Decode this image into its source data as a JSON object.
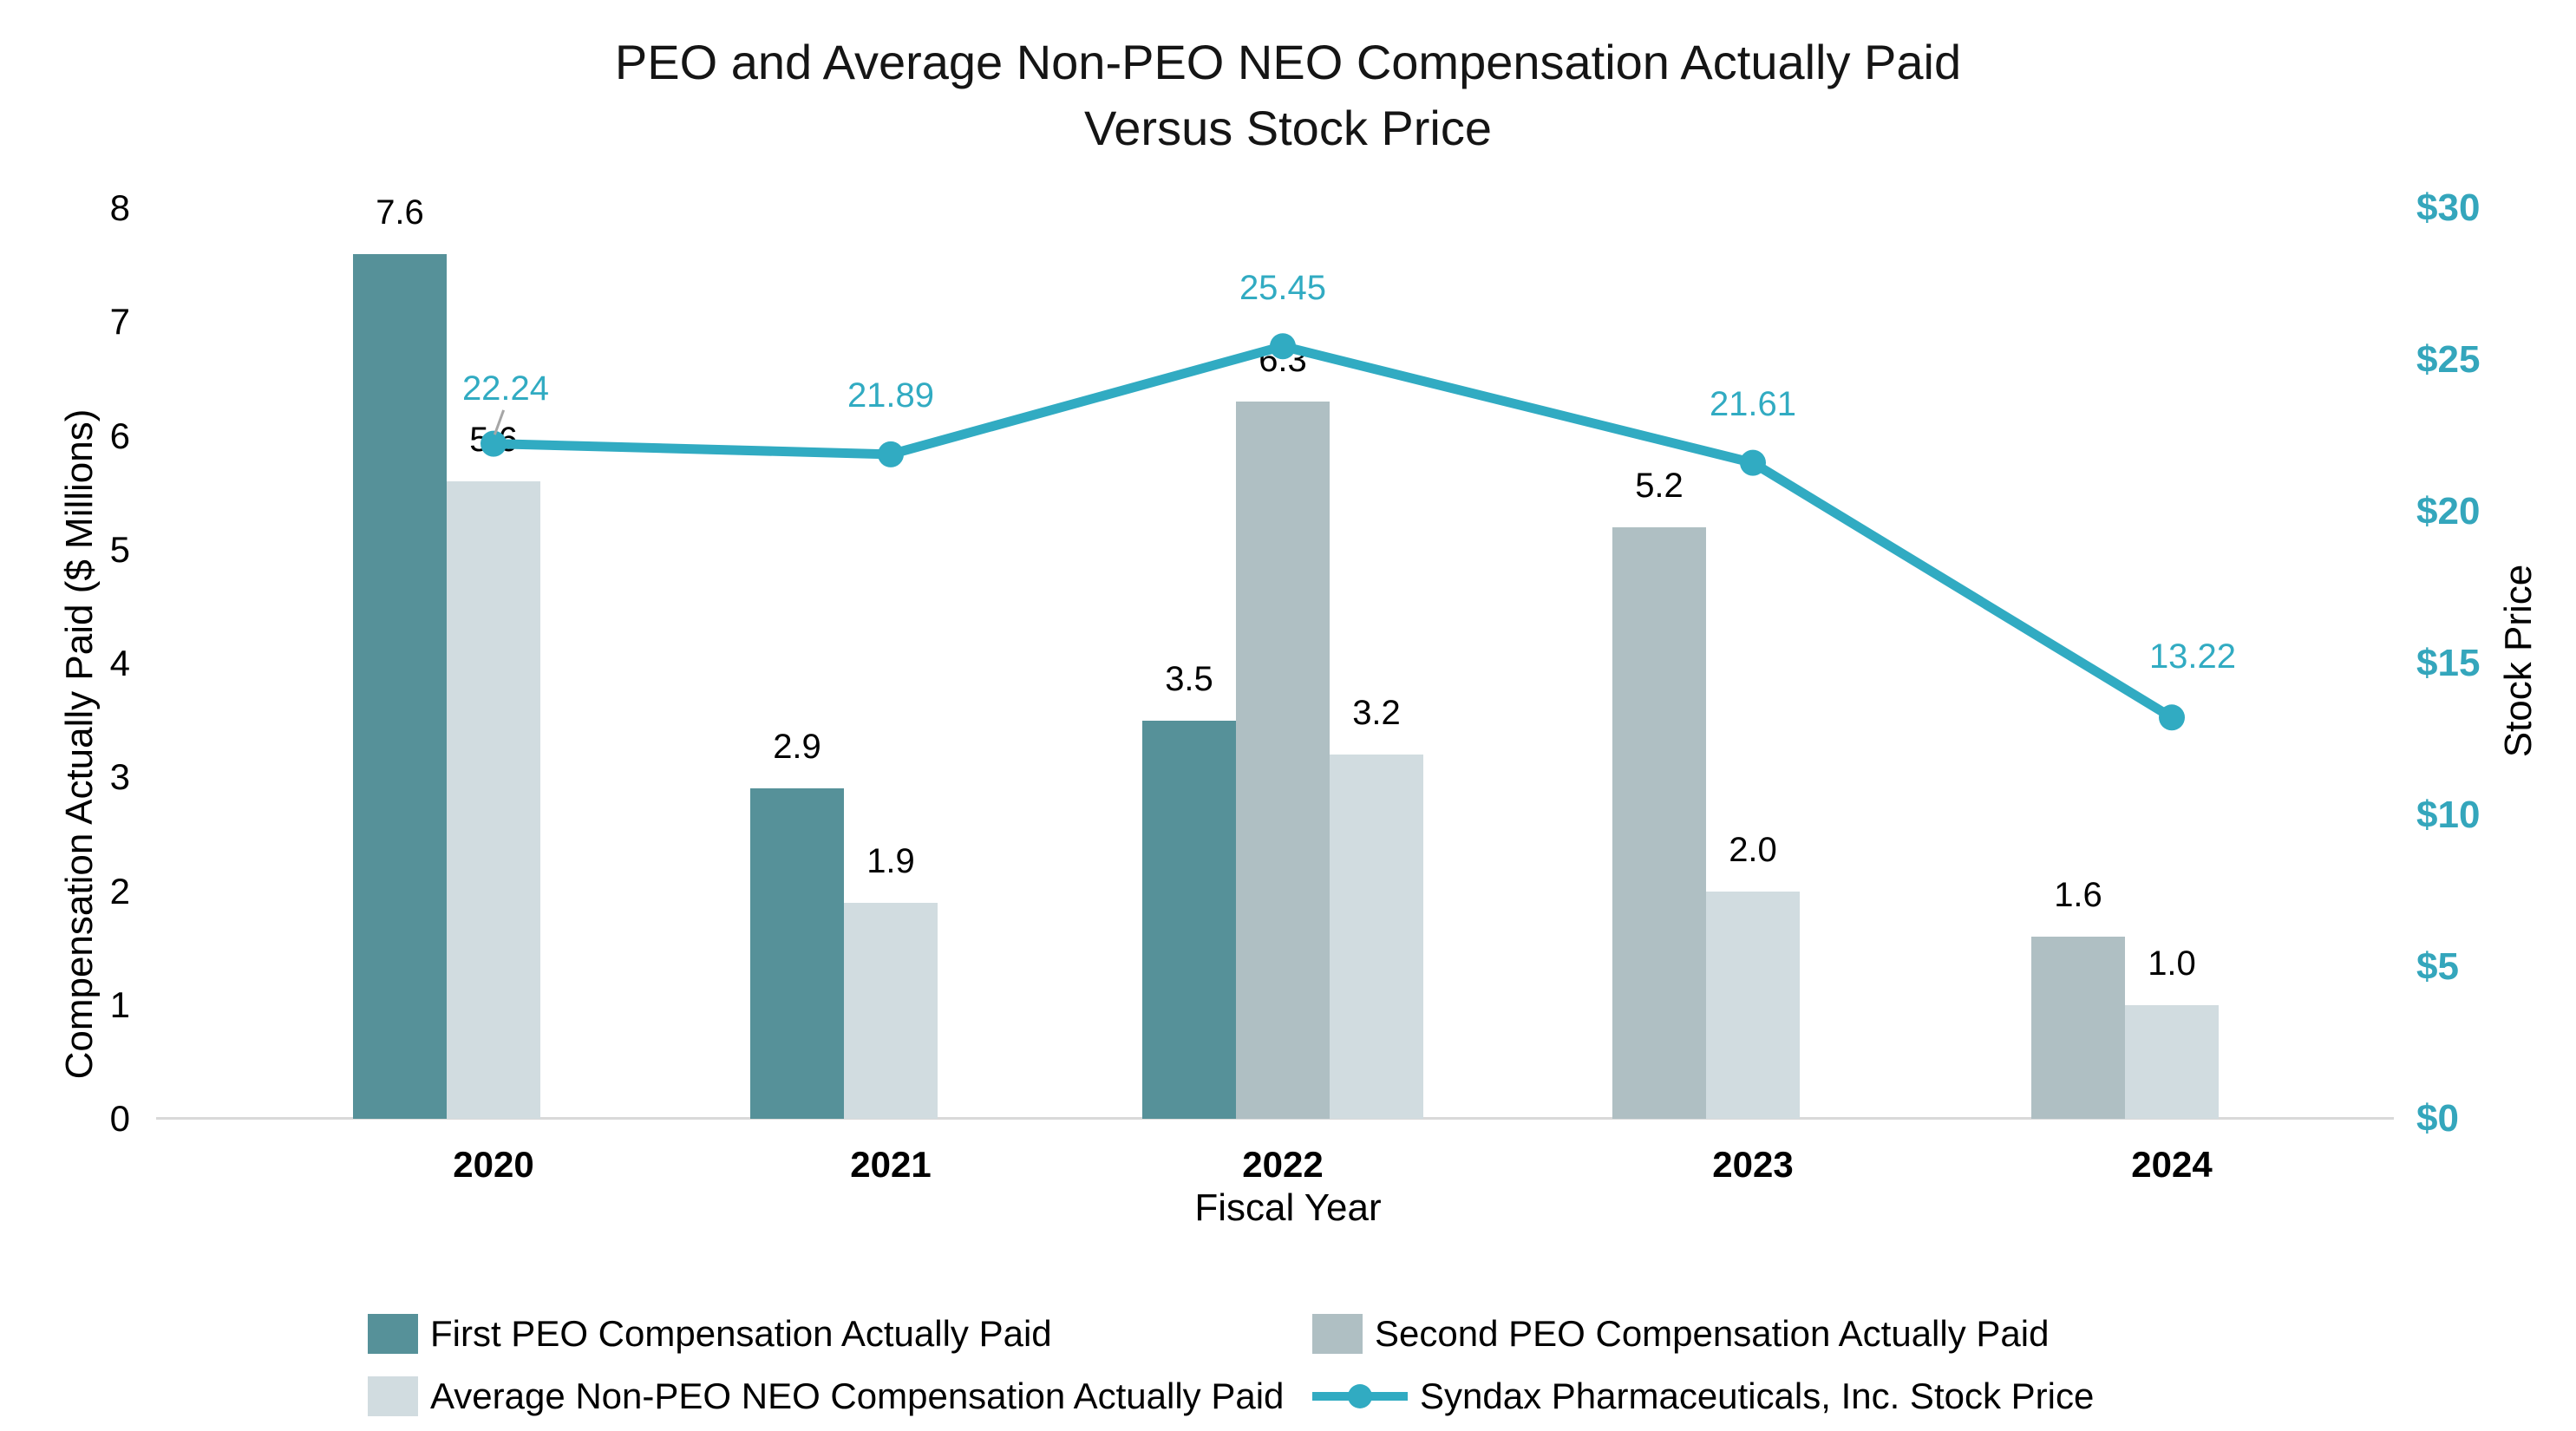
{
  "title": {
    "line1": "PEO and Average Non-PEO NEO Compensation Actually Paid",
    "line2": "Versus Stock Price"
  },
  "colors": {
    "first_peo": "#569199",
    "second_peo": "#afbfc3",
    "avg_non_peo": "#d1dce0",
    "stock_line": "#31abc2",
    "right_axis_text": "#34a6bc",
    "axis_line": "#d9d9d9",
    "leader_line": "#a6a6a6"
  },
  "chart_data": {
    "type": "bar+line",
    "categories": [
      "2020",
      "2021",
      "2022",
      "2023",
      "2024"
    ],
    "series": [
      {
        "key": "first-peo",
        "name": "First PEO Compensation Actually Paid",
        "type": "bar",
        "color_key": "first_peo",
        "values": [
          7.6,
          2.9,
          3.5,
          null,
          null
        ],
        "labels": [
          "7.6",
          "2.9",
          "3.5",
          null,
          null
        ]
      },
      {
        "key": "second-peo",
        "name": "Second PEO Compensation Actually Paid",
        "type": "bar",
        "color_key": "second_peo",
        "values": [
          null,
          null,
          6.3,
          5.2,
          1.6
        ],
        "labels": [
          null,
          null,
          "6.3",
          "5.2",
          "1.6"
        ]
      },
      {
        "key": "avg-non-peo",
        "name": "Average Non-PEO NEO Compensation Actually Paid",
        "type": "bar",
        "color_key": "avg_non_peo",
        "values": [
          5.6,
          1.9,
          3.2,
          2.0,
          1.0
        ],
        "labels": [
          "5.6",
          "1.9",
          "3.2",
          "2.0",
          "1.0"
        ]
      },
      {
        "key": "stock-price",
        "name": "Syndax Pharmaceuticals, Inc. Stock Price",
        "type": "line",
        "color_key": "stock_line",
        "values": [
          22.24,
          21.89,
          25.45,
          21.61,
          13.22
        ],
        "labels": [
          "22.24",
          "21.89",
          "25.45",
          "21.61",
          "13.22"
        ]
      }
    ],
    "xlabel": "Fiscal Year",
    "ylabel_left": "Compensation Actually Paid ($ Millions)",
    "ylabel_right": "Stock Price",
    "y_left": {
      "min": 0,
      "max": 8,
      "ticks": [
        "0",
        "1",
        "2",
        "3",
        "4",
        "5",
        "6",
        "7",
        "8"
      ]
    },
    "y_right": {
      "min": 0,
      "max": 30,
      "ticks": [
        "$0",
        "$5",
        "$10",
        "$15",
        "$20",
        "$25",
        "$30"
      ]
    },
    "grid": "off",
    "legend_position": "bottom"
  }
}
